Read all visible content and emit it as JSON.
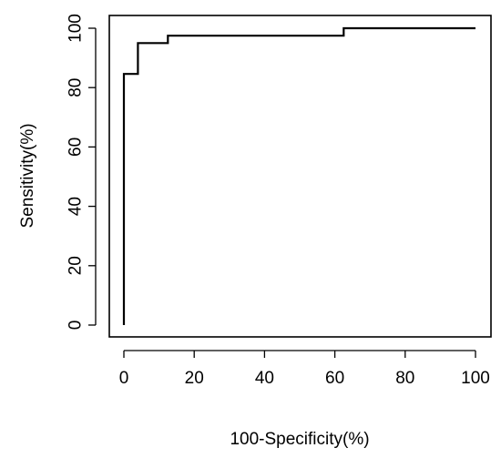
{
  "chart_data": {
    "type": "line",
    "title": "",
    "xlabel": "100-Specificity(%)",
    "ylabel": "Sensitivity(%)",
    "xlim": [
      0,
      100
    ],
    "ylim": [
      0,
      100
    ],
    "x_ticks": [
      0,
      20,
      40,
      60,
      80,
      100
    ],
    "y_ticks": [
      0,
      20,
      40,
      60,
      80,
      100
    ],
    "x_tick_labels": [
      "0",
      "20",
      "40",
      "60",
      "80",
      "100"
    ],
    "y_tick_labels": [
      "0",
      "20",
      "40",
      "60",
      "80",
      "100"
    ],
    "grid": false,
    "line_color": "#000000",
    "series": [
      {
        "step": true,
        "x": [
          0,
          0,
          4,
          4,
          12.5,
          12.5,
          62.5,
          62.5,
          100
        ],
        "y": [
          0,
          84.6,
          84.6,
          95,
          95,
          97.5,
          97.5,
          100,
          100
        ]
      }
    ]
  }
}
